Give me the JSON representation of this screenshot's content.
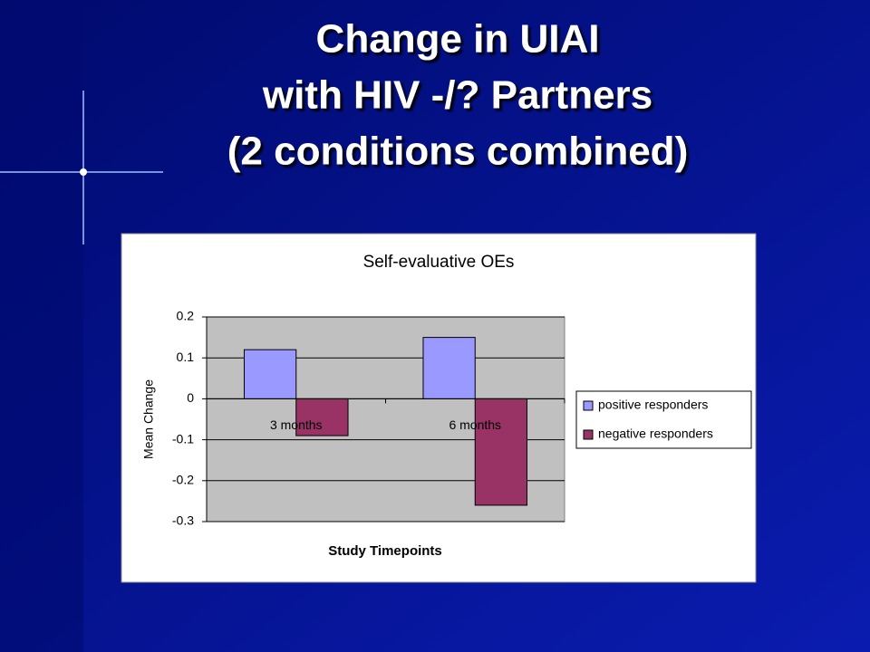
{
  "slide": {
    "title_lines": [
      "Change in UIAI",
      "with HIV -/? Partners",
      "(2  conditions combined)"
    ]
  },
  "chart_data": {
    "type": "bar",
    "title": "Self-evaluative OEs",
    "x_label": "Study Timepoints",
    "y_label": "Mean Change",
    "categories": [
      "3 months",
      "6 months"
    ],
    "series": [
      {
        "name": "positive responders",
        "color": "#9999ff",
        "values": [
          0.12,
          0.15
        ]
      },
      {
        "name": "negative responders",
        "color": "#993366",
        "values": [
          -0.09,
          -0.26
        ]
      }
    ],
    "ylim": [
      -0.3,
      0.2
    ],
    "yticks": [
      0.2,
      0.1,
      0,
      -0.1,
      -0.2,
      -0.3
    ],
    "grid": true,
    "legend": "right"
  }
}
